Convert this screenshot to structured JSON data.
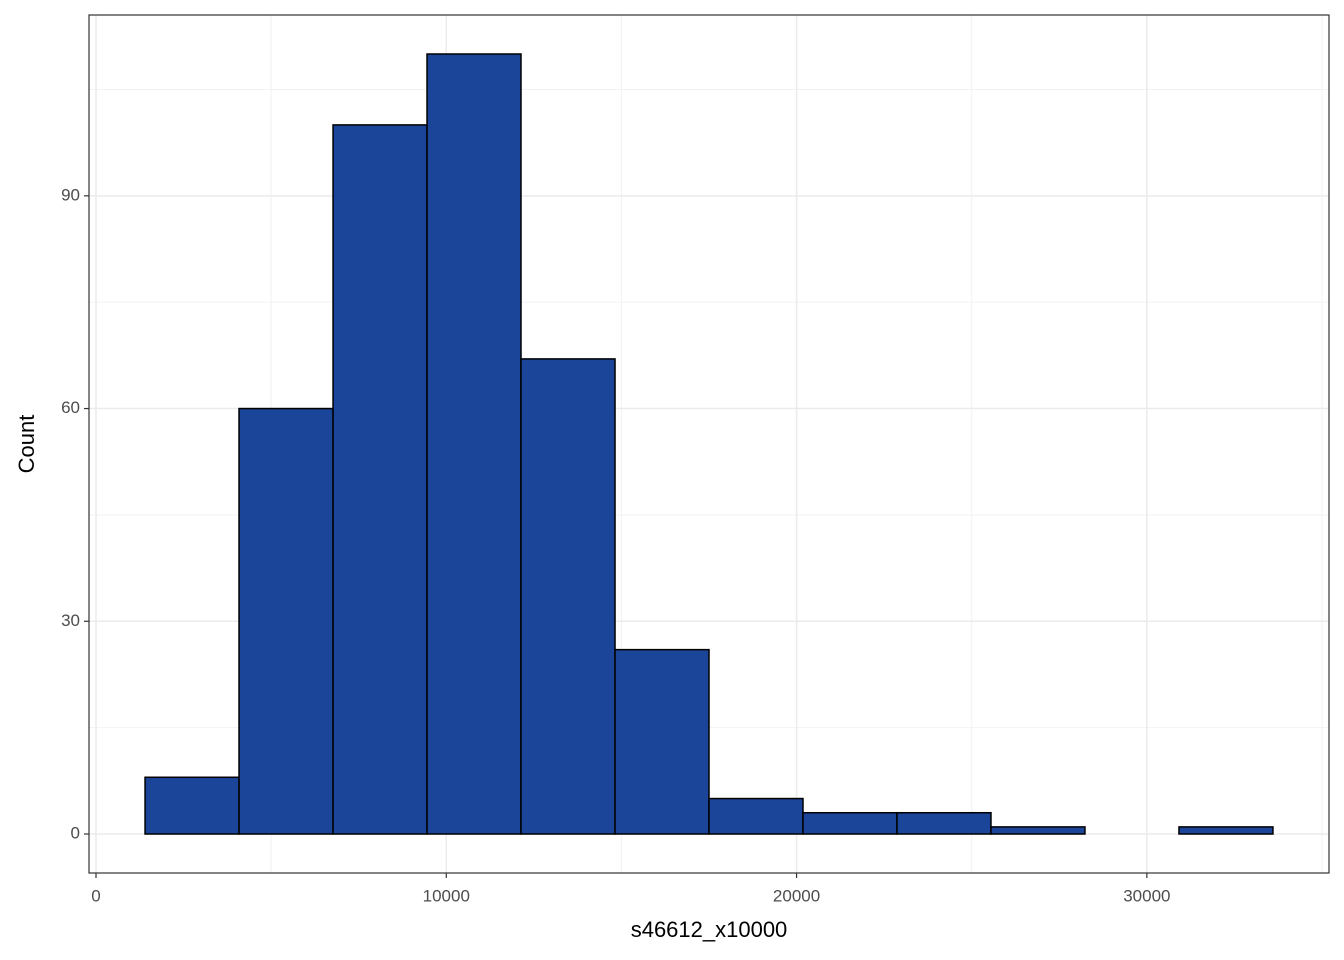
{
  "chart_data": {
    "type": "histogram",
    "x_label": "s46612_x10000",
    "y_label": "Count",
    "bins": [
      1400,
      4083,
      6767,
      9450,
      12133,
      14817,
      17500,
      20183,
      22867,
      25550,
      28233,
      30917,
      33600
    ],
    "values": [
      8,
      60,
      100,
      110,
      67,
      26,
      5,
      3,
      3,
      1,
      0,
      1
    ],
    "color": "#1a4599",
    "edge_color": "#000000",
    "xlim": [
      -200,
      35200
    ],
    "ylim": [
      -5.5,
      115.5
    ],
    "xticks": [
      0,
      10000,
      20000,
      30000
    ],
    "yticks": [
      0,
      30,
      60,
      90
    ],
    "x_minor_ticks": [
      5000,
      15000,
      25000,
      35000
    ],
    "y_minor_ticks": [
      15,
      45,
      75,
      105
    ],
    "grid": true
  }
}
